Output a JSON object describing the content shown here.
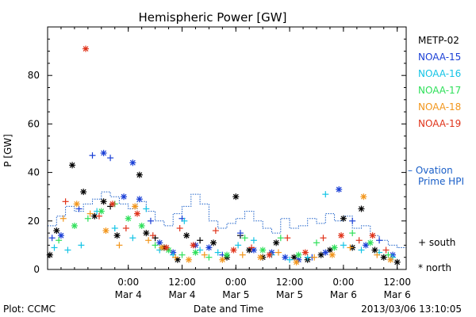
{
  "chart_data": {
    "type": "scatter",
    "title": "Hemispheric Power [GW]",
    "ylabel": "P [GW]",
    "xlabel": "Date and Time",
    "ylim": [
      0,
      100
    ],
    "xlim": [
      "2013-03-03 06:00",
      "2013-03-06 14:00"
    ],
    "y_ticks": [
      0,
      20,
      40,
      60,
      80
    ],
    "x_ticks": [
      {
        "time": "2013-03-04 00:00",
        "top": "0:00",
        "bottom": "Mar 4"
      },
      {
        "time": "2013-03-04 12:00",
        "top": "12:00",
        "bottom": "Mar 4"
      },
      {
        "time": "2013-03-05 00:00",
        "top": "0:00",
        "bottom": "Mar 5"
      },
      {
        "time": "2013-03-05 12:00",
        "top": "12:00",
        "bottom": "Mar 5"
      },
      {
        "time": "2013-03-06 00:00",
        "top": "0:00",
        "bottom": "Mar 6"
      },
      {
        "time": "2013-03-06 12:00",
        "top": "12:00",
        "bottom": "Mar 6"
      }
    ],
    "legend": {
      "placement": "right",
      "satellites": [
        {
          "name": "METP-02",
          "color": "#000000"
        },
        {
          "name": "NOAA-15",
          "color": "#1a3fd6"
        },
        {
          "name": "NOAA-16",
          "color": "#14c4e6"
        },
        {
          "name": "NOAA-17",
          "color": "#2fe05a"
        },
        {
          "name": "NOAA-18",
          "color": "#f2961c"
        },
        {
          "name": "NOAA-19",
          "color": "#e0331a"
        }
      ],
      "ovation_label_line1": "– Ovation",
      "ovation_label_line2": "Prime HPI",
      "ovation_color": "#1a5fc8",
      "south_label": "+ south",
      "north_label": "* north"
    },
    "footer": {
      "left": "Plot: CCMC",
      "right": "2013/03/06 13:10:05"
    },
    "series": [
      {
        "name": "METP-02",
        "points": [
          [
            "2013-03-03 06:30",
            6,
            "north"
          ],
          [
            "2013-03-03 08:00",
            16,
            "north"
          ],
          [
            "2013-03-03 11:30",
            43,
            "north"
          ],
          [
            "2013-03-03 14:00",
            32,
            "north"
          ],
          [
            "2013-03-03 16:30",
            22,
            "north"
          ],
          [
            "2013-03-03 18:30",
            28,
            "north"
          ],
          [
            "2013-03-03 20:00",
            26,
            "south"
          ],
          [
            "2013-03-03 21:30",
            14,
            "north"
          ],
          [
            "2013-03-04 02:30",
            39,
            "north"
          ],
          [
            "2013-03-04 04:00",
            15,
            "north"
          ],
          [
            "2013-03-04 06:00",
            13,
            "south"
          ],
          [
            "2013-03-04 08:00",
            9,
            "north"
          ],
          [
            "2013-03-04 11:00",
            4,
            "north"
          ],
          [
            "2013-03-04 13:00",
            14,
            "north"
          ],
          [
            "2013-03-04 16:00",
            12,
            "south"
          ],
          [
            "2013-03-04 19:00",
            11,
            "north"
          ],
          [
            "2013-03-04 22:00",
            5,
            "north"
          ],
          [
            "2013-03-05 00:00",
            30,
            "north"
          ],
          [
            "2013-03-05 01:00",
            14,
            "south"
          ],
          [
            "2013-03-05 03:00",
            8,
            "north"
          ],
          [
            "2013-03-05 06:00",
            5,
            "north"
          ],
          [
            "2013-03-05 09:00",
            11,
            "north"
          ],
          [
            "2013-03-05 13:00",
            5,
            "north"
          ],
          [
            "2013-03-05 16:00",
            4,
            "north"
          ],
          [
            "2013-03-05 19:00",
            6,
            "north"
          ],
          [
            "2013-03-05 21:00",
            8,
            "north"
          ],
          [
            "2013-03-06 00:00",
            21,
            "north"
          ],
          [
            "2013-03-06 02:00",
            9,
            "north"
          ],
          [
            "2013-03-06 04:00",
            25,
            "north"
          ],
          [
            "2013-03-06 07:00",
            8,
            "north"
          ],
          [
            "2013-03-06 09:00",
            5,
            "north"
          ],
          [
            "2013-03-06 12:00",
            3,
            "north"
          ]
        ]
      },
      {
        "name": "NOAA-15",
        "points": [
          [
            "2013-03-03 07:00",
            13,
            "south"
          ],
          [
            "2013-03-03 09:00",
            14,
            "north"
          ],
          [
            "2013-03-03 13:00",
            25,
            "south"
          ],
          [
            "2013-03-03 16:00",
            47,
            "south"
          ],
          [
            "2013-03-03 18:30",
            48,
            "north"
          ],
          [
            "2013-03-03 20:00",
            46,
            "south"
          ],
          [
            "2013-03-03 23:00",
            30,
            "north"
          ],
          [
            "2013-03-04 01:00",
            44,
            "north"
          ],
          [
            "2013-03-04 02:30",
            29,
            "north"
          ],
          [
            "2013-03-04 05:00",
            20,
            "south"
          ],
          [
            "2013-03-04 07:00",
            11,
            "north"
          ],
          [
            "2013-03-04 10:00",
            7,
            "north"
          ],
          [
            "2013-03-04 12:00",
            21,
            "south"
          ],
          [
            "2013-03-04 15:00",
            10,
            "north"
          ],
          [
            "2013-03-04 18:00",
            9,
            "north"
          ],
          [
            "2013-03-04 21:00",
            6,
            "south"
          ],
          [
            "2013-03-05 01:00",
            15,
            "south"
          ],
          [
            "2013-03-05 04:00",
            8,
            "north"
          ],
          [
            "2013-03-05 08:00",
            7,
            "north"
          ],
          [
            "2013-03-05 11:00",
            5,
            "north"
          ],
          [
            "2013-03-05 14:00",
            4,
            "north"
          ],
          [
            "2013-03-05 17:00",
            5,
            "south"
          ],
          [
            "2013-03-05 20:00",
            7,
            "north"
          ],
          [
            "2013-03-05 23:00",
            33,
            "north"
          ],
          [
            "2013-03-06 02:00",
            20,
            "south"
          ],
          [
            "2013-03-06 05:00",
            10,
            "north"
          ],
          [
            "2013-03-06 08:00",
            12,
            "south"
          ],
          [
            "2013-03-06 11:00",
            6,
            "north"
          ]
        ]
      },
      {
        "name": "NOAA-16",
        "points": [
          [
            "2013-03-03 07:30",
            9,
            "south"
          ],
          [
            "2013-03-03 10:30",
            8,
            "south"
          ],
          [
            "2013-03-03 13:30",
            10,
            "south"
          ],
          [
            "2013-03-03 17:00",
            24,
            "south"
          ],
          [
            "2013-03-03 21:00",
            17,
            "south"
          ],
          [
            "2013-03-04 01:00",
            13,
            "south"
          ],
          [
            "2013-03-04 04:00",
            25,
            "south"
          ],
          [
            "2013-03-04 07:00",
            8,
            "south"
          ],
          [
            "2013-03-04 10:00",
            6,
            "south"
          ],
          [
            "2013-03-04 12:30",
            20,
            "south"
          ],
          [
            "2013-03-04 16:00",
            8,
            "south"
          ],
          [
            "2013-03-04 20:00",
            7,
            "south"
          ],
          [
            "2013-03-05 00:30",
            10,
            "south"
          ],
          [
            "2013-03-05 04:00",
            12,
            "south"
          ],
          [
            "2013-03-05 08:00",
            6,
            "south"
          ],
          [
            "2013-03-05 12:00",
            4,
            "south"
          ],
          [
            "2013-03-05 16:00",
            5,
            "south"
          ],
          [
            "2013-03-05 20:00",
            31,
            "south"
          ],
          [
            "2013-03-06 00:00",
            10,
            "south"
          ],
          [
            "2013-03-06 04:00",
            8,
            "south"
          ],
          [
            "2013-03-06 08:00",
            7,
            "south"
          ],
          [
            "2013-03-06 11:00",
            5,
            "south"
          ]
        ]
      },
      {
        "name": "NOAA-17",
        "points": [
          [
            "2013-03-03 08:30",
            12,
            "south"
          ],
          [
            "2013-03-03 12:00",
            18,
            "north"
          ],
          [
            "2013-03-03 15:00",
            21,
            "south"
          ],
          [
            "2013-03-03 18:00",
            24,
            "north"
          ],
          [
            "2013-03-03 21:00",
            27,
            "south"
          ],
          [
            "2013-03-04 00:00",
            21,
            "north"
          ],
          [
            "2013-03-04 03:00",
            18,
            "north"
          ],
          [
            "2013-03-04 06:00",
            10,
            "south"
          ],
          [
            "2013-03-04 09:00",
            8,
            "north"
          ],
          [
            "2013-03-04 12:00",
            6,
            "south"
          ],
          [
            "2013-03-04 15:00",
            7,
            "north"
          ],
          [
            "2013-03-04 18:00",
            5,
            "south"
          ],
          [
            "2013-03-04 22:00",
            6,
            "north"
          ],
          [
            "2013-03-05 02:00",
            13,
            "south"
          ],
          [
            "2013-03-05 06:00",
            8,
            "north"
          ],
          [
            "2013-03-05 10:00",
            13,
            "south"
          ],
          [
            "2013-03-05 14:00",
            6,
            "north"
          ],
          [
            "2013-03-05 18:00",
            11,
            "south"
          ],
          [
            "2013-03-05 22:00",
            9,
            "north"
          ],
          [
            "2013-03-06 02:00",
            15,
            "south"
          ],
          [
            "2013-03-06 06:00",
            11,
            "north"
          ],
          [
            "2013-03-06 10:00",
            6,
            "south"
          ]
        ]
      },
      {
        "name": "NOAA-18",
        "points": [
          [
            "2013-03-03 09:30",
            21,
            "south"
          ],
          [
            "2013-03-03 12:30",
            27,
            "north"
          ],
          [
            "2013-03-03 15:30",
            23,
            "south"
          ],
          [
            "2013-03-03 19:00",
            16,
            "north"
          ],
          [
            "2013-03-03 22:00",
            10,
            "south"
          ],
          [
            "2013-03-04 01:30",
            26,
            "north"
          ],
          [
            "2013-03-04 04:30",
            12,
            "south"
          ],
          [
            "2013-03-04 07:30",
            9,
            "north"
          ],
          [
            "2013-03-04 10:30",
            5,
            "south"
          ],
          [
            "2013-03-04 13:30",
            4,
            "north"
          ],
          [
            "2013-03-04 17:00",
            6,
            "south"
          ],
          [
            "2013-03-04 21:00",
            4,
            "north"
          ],
          [
            "2013-03-05 01:30",
            6,
            "south"
          ],
          [
            "2013-03-05 05:30",
            5,
            "north"
          ],
          [
            "2013-03-05 09:30",
            7,
            "south"
          ],
          [
            "2013-03-05 13:30",
            3,
            "north"
          ],
          [
            "2013-03-05 17:30",
            5,
            "south"
          ],
          [
            "2013-03-05 21:30",
            6,
            "north"
          ],
          [
            "2013-03-06 01:30",
            9,
            "south"
          ],
          [
            "2013-03-06 04:30",
            30,
            "north"
          ],
          [
            "2013-03-06 07:30",
            6,
            "south"
          ],
          [
            "2013-03-06 10:30",
            4,
            "north"
          ]
        ]
      },
      {
        "name": "NOAA-19",
        "points": [
          [
            "2013-03-03 10:00",
            28,
            "south"
          ],
          [
            "2013-03-03 14:30",
            91,
            "north"
          ],
          [
            "2013-03-03 17:30",
            22,
            "south"
          ],
          [
            "2013-03-03 20:30",
            27,
            "north"
          ],
          [
            "2013-03-03 23:30",
            17,
            "south"
          ],
          [
            "2013-03-04 02:00",
            23,
            "north"
          ],
          [
            "2013-03-04 05:30",
            14,
            "south"
          ],
          [
            "2013-03-04 08:30",
            9,
            "north"
          ],
          [
            "2013-03-04 11:30",
            17,
            "south"
          ],
          [
            "2013-03-04 14:30",
            10,
            "north"
          ],
          [
            "2013-03-04 19:30",
            16,
            "south"
          ],
          [
            "2013-03-04 23:30",
            8,
            "north"
          ],
          [
            "2013-03-05 03:30",
            9,
            "south"
          ],
          [
            "2013-03-05 07:30",
            6,
            "north"
          ],
          [
            "2013-03-05 11:30",
            13,
            "south"
          ],
          [
            "2013-03-05 15:30",
            7,
            "north"
          ],
          [
            "2013-03-05 19:30",
            13,
            "south"
          ],
          [
            "2013-03-05 23:30",
            14,
            "north"
          ],
          [
            "2013-03-06 03:30",
            12,
            "south"
          ],
          [
            "2013-03-06 06:30",
            14,
            "north"
          ],
          [
            "2013-03-06 09:30",
            8,
            "south"
          ]
        ]
      }
    ],
    "ovation_hpi": [
      [
        "2013-03-03 06:00",
        18
      ],
      [
        "2013-03-03 08:00",
        22
      ],
      [
        "2013-03-03 10:00",
        26
      ],
      [
        "2013-03-03 12:00",
        24
      ],
      [
        "2013-03-03 14:00",
        27
      ],
      [
        "2013-03-03 16:00",
        29
      ],
      [
        "2013-03-03 18:00",
        32
      ],
      [
        "2013-03-03 20:00",
        30
      ],
      [
        "2013-03-03 22:00",
        27
      ],
      [
        "2013-03-04 00:00",
        25
      ],
      [
        "2013-03-04 02:00",
        28
      ],
      [
        "2013-03-04 04:00",
        24
      ],
      [
        "2013-03-04 06:00",
        20
      ],
      [
        "2013-03-04 08:00",
        18
      ],
      [
        "2013-03-04 10:00",
        23
      ],
      [
        "2013-03-04 12:00",
        26
      ],
      [
        "2013-03-04 14:00",
        31
      ],
      [
        "2013-03-04 16:00",
        27
      ],
      [
        "2013-03-04 18:00",
        20
      ],
      [
        "2013-03-04 20:00",
        17
      ],
      [
        "2013-03-04 22:00",
        19
      ],
      [
        "2013-03-05 00:00",
        21
      ],
      [
        "2013-03-05 02:00",
        24
      ],
      [
        "2013-03-05 04:00",
        20
      ],
      [
        "2013-03-05 06:00",
        17
      ],
      [
        "2013-03-05 08:00",
        15
      ],
      [
        "2013-03-05 10:00",
        21
      ],
      [
        "2013-03-05 12:00",
        17
      ],
      [
        "2013-03-05 14:00",
        18
      ],
      [
        "2013-03-05 16:00",
        21
      ],
      [
        "2013-03-05 18:00",
        19
      ],
      [
        "2013-03-05 20:00",
        23
      ],
      [
        "2013-03-05 22:00",
        20
      ],
      [
        "2013-03-06 00:00",
        22
      ],
      [
        "2013-03-06 02:00",
        17
      ],
      [
        "2013-03-06 04:00",
        18
      ],
      [
        "2013-03-06 06:00",
        14
      ],
      [
        "2013-03-06 08:00",
        12
      ],
      [
        "2013-03-06 10:00",
        10
      ],
      [
        "2013-03-06 12:00",
        9
      ],
      [
        "2013-03-06 14:00",
        8
      ]
    ]
  }
}
